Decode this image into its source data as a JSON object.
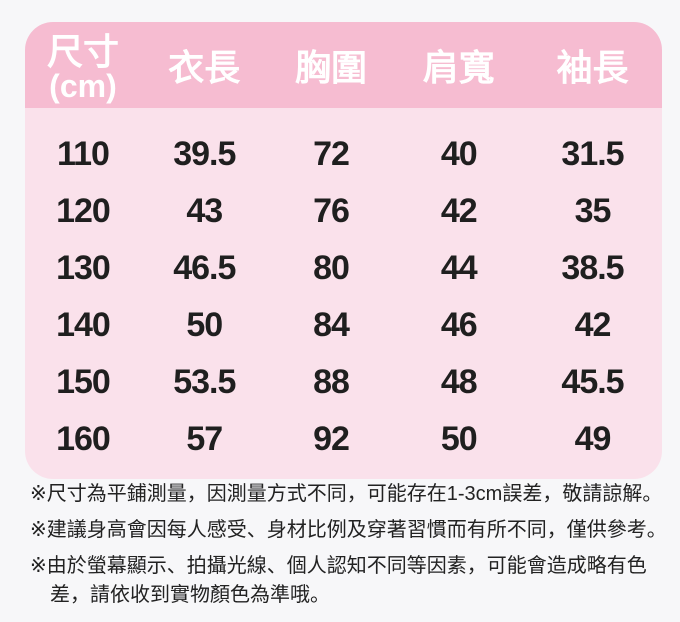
{
  "table": {
    "header": {
      "size_label_line1": "尺寸",
      "size_label_line2": "(cm)",
      "columns": [
        "衣長",
        "胸圍",
        "肩寬",
        "袖長"
      ]
    },
    "rows": [
      {
        "size": "110",
        "values": [
          "39.5",
          "72",
          "40",
          "31.5"
        ]
      },
      {
        "size": "120",
        "values": [
          "43",
          "76",
          "42",
          "35"
        ]
      },
      {
        "size": "130",
        "values": [
          "46.5",
          "80",
          "44",
          "38.5"
        ]
      },
      {
        "size": "140",
        "values": [
          "50",
          "84",
          "46",
          "42"
        ]
      },
      {
        "size": "150",
        "values": [
          "53.5",
          "88",
          "48",
          "45.5"
        ]
      },
      {
        "size": "160",
        "values": [
          "57",
          "92",
          "50",
          "49"
        ]
      }
    ]
  },
  "notes": [
    {
      "lines": [
        "※尺寸為平鋪測量，因測量方式不同，可能存在1-3cm誤差，敬請諒解。"
      ]
    },
    {
      "lines": [
        "※建議身高會因每人感受、身材比例及穿著習慣而有所不同，僅供參考。"
      ]
    },
    {
      "lines": [
        "※由於螢幕顯示、拍攝光線、個人認知不同等因素，可能會造成略有色",
        "差，請依收到實物顏色為準哦。"
      ]
    }
  ],
  "colors": {
    "header_pink": "#f6bcd1",
    "body_pink": "#fae1eb",
    "page_background": "#f7f7f9",
    "header_text": "#ffffff",
    "value_text": "#1f1f1f",
    "note_text": "#222222"
  }
}
